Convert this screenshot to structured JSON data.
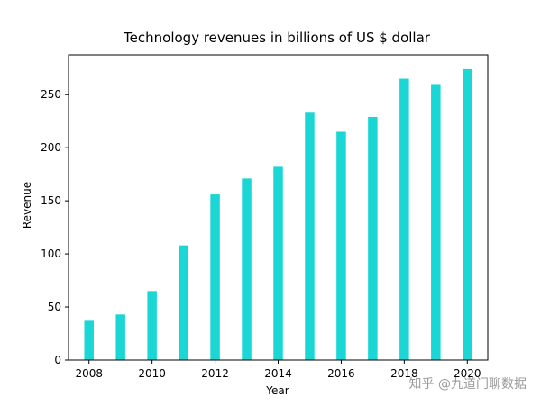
{
  "chart_data": {
    "type": "bar",
    "title": "Technology revenues in billions of US $ dollar",
    "xlabel": "Year",
    "ylabel": "Revenue",
    "categories": [
      2008,
      2009,
      2010,
      2011,
      2012,
      2013,
      2014,
      2015,
      2016,
      2017,
      2018,
      2019,
      2020
    ],
    "values": [
      37,
      43,
      65,
      108,
      156,
      171,
      182,
      233,
      215,
      229,
      265,
      260,
      274
    ],
    "bar_color": "#1ad7d6",
    "ylim": [
      0,
      287.5
    ],
    "xlim": [
      2007.35,
      2020.65
    ],
    "x_ticks": [
      2008,
      2010,
      2012,
      2014,
      2016,
      2018,
      2020
    ],
    "y_ticks": [
      0,
      50,
      100,
      150,
      200,
      250
    ],
    "grid": false,
    "legend": "none"
  },
  "watermark": "知乎 @九道门聊数据"
}
